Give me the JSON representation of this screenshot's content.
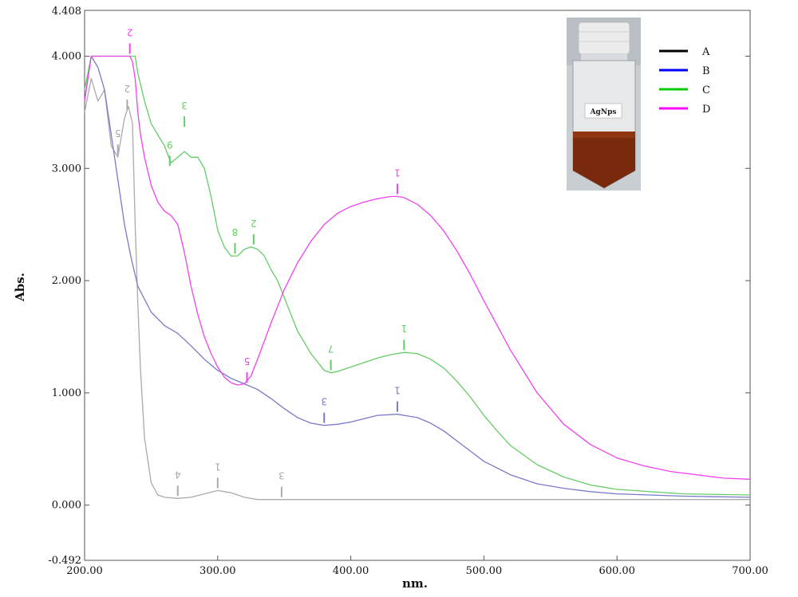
{
  "chart_data": {
    "type": "line",
    "xlabel": "nm.",
    "ylabel": "Abs.",
    "xlim": [
      200,
      700
    ],
    "ylim": [
      -0.492,
      4.408
    ],
    "x_ticks": [
      "200.00",
      "300.00",
      "400.00",
      "500.00",
      "600.00",
      "700.00"
    ],
    "y_ticks": [
      "0.000",
      "1.000",
      "2.000",
      "3.000",
      "4.000"
    ],
    "y_min_label": "-0.492",
    "y_max_label": "4.408",
    "legend_position": "top-right",
    "series": [
      {
        "name": "A",
        "color": "#aaaaaa",
        "legend_color": "#000000",
        "x": [
          200,
          205,
          210,
          215,
          220,
          225,
          230,
          233,
          236,
          238,
          240,
          242,
          245,
          250,
          255,
          260,
          270,
          280,
          290,
          300,
          310,
          320,
          330,
          340,
          348,
          360,
          400,
          450,
          500,
          550,
          600,
          650,
          700
        ],
        "y": [
          3.5,
          3.8,
          3.6,
          3.7,
          3.2,
          3.1,
          3.45,
          3.55,
          3.4,
          2.5,
          1.8,
          1.2,
          0.6,
          0.2,
          0.09,
          0.07,
          0.06,
          0.07,
          0.1,
          0.13,
          0.11,
          0.07,
          0.05,
          0.05,
          0.05,
          0.05,
          0.05,
          0.05,
          0.05,
          0.05,
          0.05,
          0.05,
          0.05
        ],
        "labels": [
          {
            "text": "1",
            "x": 300,
            "y": 0.13
          },
          {
            "text": "4",
            "x": 270,
            "y": 0.06
          },
          {
            "text": "3",
            "x": 348,
            "y": 0.05
          },
          {
            "text": "5",
            "x": 225,
            "y": 3.1
          },
          {
            "text": "2",
            "x": 232,
            "y": 3.5
          }
        ]
      },
      {
        "name": "B",
        "color": "#7a7ac8",
        "legend_color": "#0000ff",
        "x": [
          200,
          205,
          210,
          215,
          220,
          225,
          230,
          235,
          240,
          250,
          260,
          270,
          280,
          290,
          300,
          310,
          320,
          330,
          340,
          350,
          360,
          370,
          380,
          390,
          400,
          410,
          420,
          435,
          450,
          460,
          470,
          480,
          490,
          500,
          520,
          540,
          560,
          580,
          600,
          650,
          700
        ],
        "y": [
          3.6,
          4.0,
          3.9,
          3.7,
          3.3,
          2.9,
          2.5,
          2.2,
          1.95,
          1.72,
          1.6,
          1.53,
          1.42,
          1.3,
          1.2,
          1.13,
          1.08,
          1.03,
          0.95,
          0.86,
          0.78,
          0.73,
          0.71,
          0.72,
          0.74,
          0.77,
          0.8,
          0.81,
          0.78,
          0.73,
          0.66,
          0.57,
          0.48,
          0.39,
          0.27,
          0.19,
          0.15,
          0.12,
          0.1,
          0.08,
          0.07
        ],
        "labels": [
          {
            "text": "1",
            "x": 435,
            "y": 0.81
          },
          {
            "text": "3",
            "x": 380,
            "y": 0.71
          }
        ]
      },
      {
        "name": "C",
        "color": "#66cc66",
        "legend_color": "#00cc00",
        "x": [
          200,
          205,
          210,
          220,
          230,
          235,
          238,
          240,
          245,
          250,
          255,
          260,
          265,
          270,
          275,
          280,
          285,
          290,
          295,
          300,
          305,
          310,
          315,
          320,
          325,
          330,
          335,
          340,
          345,
          350,
          355,
          360,
          370,
          380,
          385,
          390,
          400,
          410,
          420,
          430,
          440,
          450,
          460,
          470,
          480,
          490,
          500,
          510,
          520,
          540,
          560,
          580,
          600,
          650,
          700
        ],
        "y": [
          3.7,
          4.0,
          4.0,
          4.0,
          4.0,
          4.0,
          4.0,
          3.85,
          3.6,
          3.4,
          3.3,
          3.2,
          3.05,
          3.1,
          3.15,
          3.1,
          3.1,
          3.0,
          2.75,
          2.45,
          2.3,
          2.22,
          2.22,
          2.28,
          2.3,
          2.28,
          2.22,
          2.1,
          2.0,
          1.85,
          1.7,
          1.55,
          1.35,
          1.2,
          1.18,
          1.19,
          1.23,
          1.27,
          1.31,
          1.34,
          1.36,
          1.35,
          1.3,
          1.22,
          1.1,
          0.96,
          0.8,
          0.66,
          0.53,
          0.36,
          0.25,
          0.18,
          0.14,
          0.1,
          0.09
        ],
        "labels": [
          {
            "text": "1",
            "x": 440,
            "y": 1.36
          },
          {
            "text": "7",
            "x": 385,
            "y": 1.18
          },
          {
            "text": "2",
            "x": 327,
            "y": 2.3
          },
          {
            "text": "8",
            "x": 313,
            "y": 2.22
          },
          {
            "text": "3",
            "x": 275,
            "y": 3.35
          },
          {
            "text": "9",
            "x": 264,
            "y": 3.0
          }
        ]
      },
      {
        "name": "D",
        "color": "#ee44ee",
        "legend_color": "#ff00ff",
        "x": [
          200,
          205,
          210,
          220,
          230,
          234,
          236,
          238,
          240,
          242,
          245,
          250,
          255,
          260,
          265,
          270,
          275,
          280,
          285,
          290,
          295,
          300,
          305,
          310,
          315,
          320,
          325,
          330,
          340,
          350,
          360,
          370,
          380,
          390,
          400,
          410,
          420,
          430,
          435,
          440,
          450,
          460,
          470,
          480,
          490,
          500,
          510,
          520,
          540,
          560,
          580,
          600,
          620,
          640,
          660,
          680,
          700
        ],
        "y": [
          3.6,
          4.0,
          4.0,
          4.0,
          4.0,
          4.0,
          3.95,
          3.8,
          3.5,
          3.3,
          3.1,
          2.85,
          2.7,
          2.62,
          2.58,
          2.5,
          2.25,
          1.95,
          1.7,
          1.5,
          1.35,
          1.23,
          1.14,
          1.09,
          1.07,
          1.08,
          1.15,
          1.3,
          1.62,
          1.92,
          2.16,
          2.35,
          2.5,
          2.6,
          2.66,
          2.7,
          2.73,
          2.75,
          2.75,
          2.74,
          2.68,
          2.58,
          2.44,
          2.26,
          2.05,
          1.82,
          1.6,
          1.38,
          1.0,
          0.72,
          0.54,
          0.42,
          0.35,
          0.3,
          0.27,
          0.24,
          0.23
        ],
        "labels": [
          {
            "text": "1",
            "x": 435,
            "y": 2.75
          },
          {
            "text": "5",
            "x": 322,
            "y": 1.07
          },
          {
            "text": "2",
            "x": 234,
            "y": 4.0
          }
        ]
      }
    ]
  },
  "inset": {
    "bottle_label": "AgNps",
    "liquid_color": "#7a2a0c",
    "cap_color": "#ececec"
  }
}
